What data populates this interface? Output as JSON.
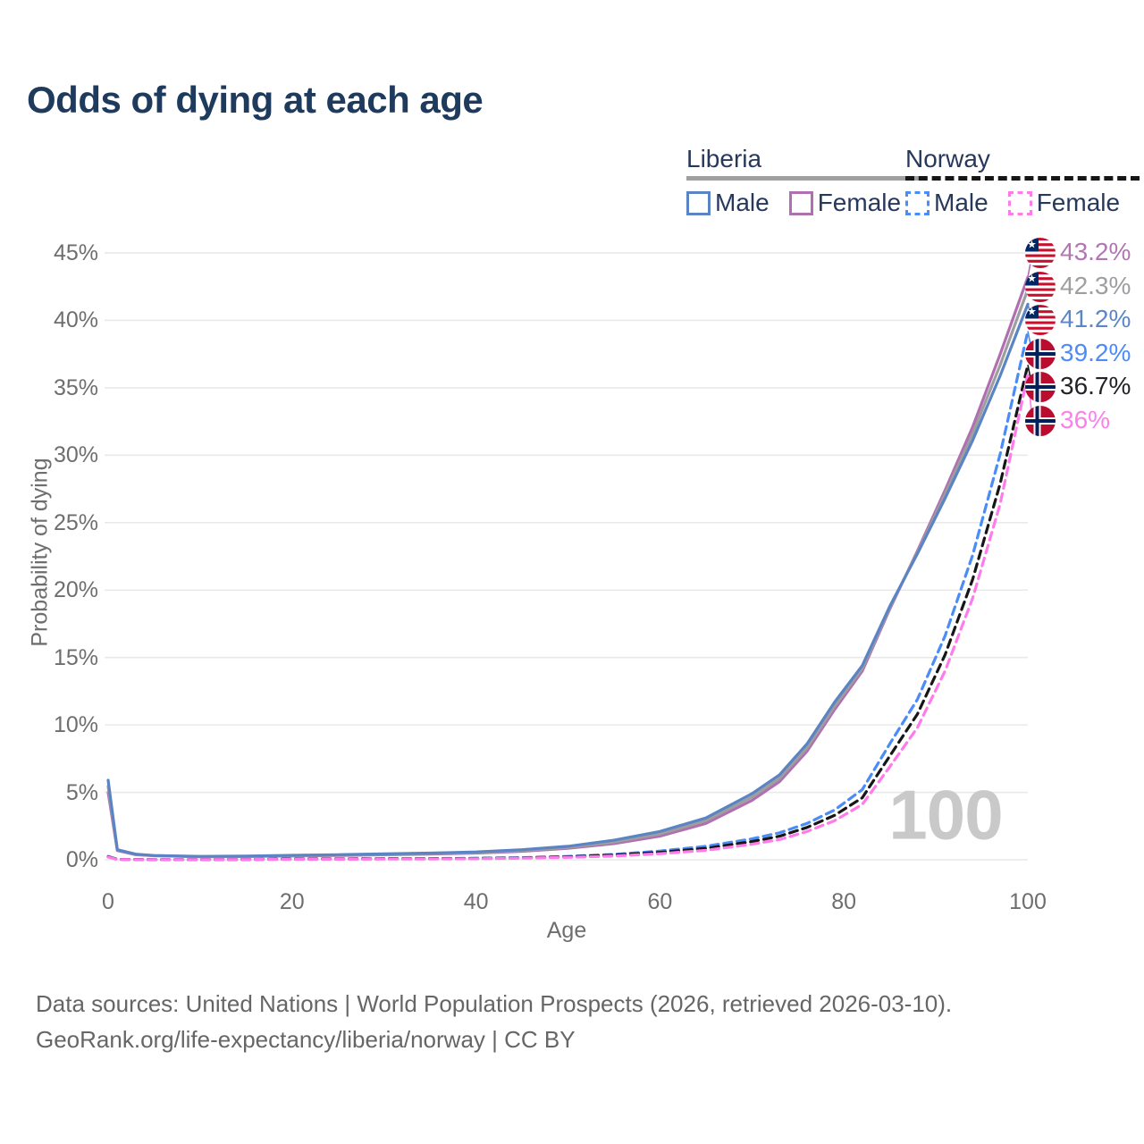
{
  "title": "Odds of dying at each age",
  "watermark": "100",
  "legend": {
    "groups": [
      {
        "label": "Liberia",
        "underline_style": "solid",
        "underline_color": "#a0a0a0",
        "items": [
          {
            "label": "Male",
            "color": "#5b84c4",
            "dashed": false
          },
          {
            "label": "Female",
            "color": "#b06fb0",
            "dashed": false
          }
        ]
      },
      {
        "label": "Norway",
        "underline_style": "dashed",
        "underline_color": "#161616",
        "items": [
          {
            "label": "Male",
            "color": "#4b8cf7",
            "dashed": true
          },
          {
            "label": "Female",
            "color": "#ff7bea",
            "dashed": true
          }
        ]
      }
    ]
  },
  "footer": {
    "line1": "Data sources: United Nations | World Population Prospects (2026, retrieved 2026-03-10).",
    "line2": "GeoRank.org/life-expectancy/liberia/norway | CC BY"
  },
  "chart_data": {
    "type": "line",
    "title": "Odds of dying at each age",
    "xlabel": "Age",
    "ylabel": "Probability of dying",
    "xlim": [
      0,
      100
    ],
    "ylim": [
      0,
      45
    ],
    "grid": true,
    "x_ticks": [
      {
        "value": 0,
        "label": "0"
      },
      {
        "value": 20,
        "label": "20"
      },
      {
        "value": 40,
        "label": "40"
      },
      {
        "value": 60,
        "label": "60"
      },
      {
        "value": 80,
        "label": "80"
      },
      {
        "value": 100,
        "label": "100"
      }
    ],
    "y_ticks": [
      {
        "value": 0,
        "label": "0%"
      },
      {
        "value": 5,
        "label": "5%"
      },
      {
        "value": 10,
        "label": "10%"
      },
      {
        "value": 15,
        "label": "15%"
      },
      {
        "value": 20,
        "label": "20%"
      },
      {
        "value": 25,
        "label": "25%"
      },
      {
        "value": 30,
        "label": "30%"
      },
      {
        "value": 35,
        "label": "35%"
      },
      {
        "value": 40,
        "label": "40%"
      },
      {
        "value": 45,
        "label": "45%"
      }
    ],
    "ages": [
      0,
      1,
      3,
      5,
      10,
      15,
      20,
      25,
      30,
      35,
      40,
      45,
      50,
      55,
      60,
      65,
      70,
      73,
      76,
      79,
      82,
      85,
      88,
      91,
      94,
      97,
      100
    ],
    "series": [
      {
        "name": "Liberia Female",
        "country": "Liberia",
        "sex": "Female",
        "flag": "liberia",
        "color": "#b06fb0",
        "label_color": "#b077b1",
        "dash": false,
        "end_label": "43.2%",
        "values": [
          5.0,
          0.68,
          0.38,
          0.3,
          0.22,
          0.24,
          0.28,
          0.32,
          0.37,
          0.42,
          0.5,
          0.63,
          0.85,
          1.2,
          1.75,
          2.7,
          4.4,
          5.8,
          8.05,
          11.15,
          14.0,
          18.6,
          22.9,
          27.4,
          32.1,
          37.5,
          43.2
        ]
      },
      {
        "name": "Liberia Both sexes",
        "country": "Liberia",
        "sex": "Both",
        "flag": "liberia",
        "color": "#9e9e9e",
        "label_color": "#9e9ea2",
        "dash": false,
        "end_label": "42.3%",
        "values": [
          5.45,
          0.72,
          0.4,
          0.31,
          0.23,
          0.26,
          0.3,
          0.35,
          0.4,
          0.46,
          0.54,
          0.69,
          0.92,
          1.32,
          1.92,
          2.9,
          4.65,
          6.05,
          8.3,
          11.4,
          14.2,
          18.7,
          22.8,
          27.1,
          31.6,
          36.7,
          42.3
        ]
      },
      {
        "name": "Liberia Male",
        "country": "Liberia",
        "sex": "Male",
        "flag": "liberia",
        "color": "#5b84c4",
        "label_color": "#5b87c6",
        "dash": false,
        "end_label": "41.2%",
        "values": [
          5.9,
          0.75,
          0.42,
          0.32,
          0.25,
          0.28,
          0.33,
          0.38,
          0.44,
          0.5,
          0.58,
          0.75,
          1.0,
          1.45,
          2.1,
          3.1,
          4.9,
          6.3,
          8.6,
          11.7,
          14.4,
          18.8,
          22.7,
          26.8,
          31.1,
          35.9,
          41.2
        ]
      },
      {
        "name": "Norway Male",
        "country": "Norway",
        "sex": "Male",
        "flag": "norway",
        "color": "#4b8cf7",
        "label_color": "#4b8cf7",
        "dash": true,
        "end_label": "39.2%",
        "values": [
          0.25,
          0.03,
          0.02,
          0.01,
          0.01,
          0.03,
          0.06,
          0.07,
          0.08,
          0.09,
          0.11,
          0.16,
          0.25,
          0.4,
          0.65,
          1.0,
          1.55,
          2.0,
          2.7,
          3.7,
          5.2,
          8.6,
          11.9,
          16.6,
          22.6,
          30.1,
          39.2
        ]
      },
      {
        "name": "Norway Both sexes",
        "country": "Norway",
        "sex": "Both",
        "flag": "norway",
        "color": "#161616",
        "label_color": "#232327",
        "dash": true,
        "end_label": "36.7%",
        "values": [
          0.22,
          0.03,
          0.02,
          0.01,
          0.01,
          0.02,
          0.05,
          0.06,
          0.07,
          0.08,
          0.1,
          0.14,
          0.22,
          0.35,
          0.55,
          0.85,
          1.35,
          1.75,
          2.4,
          3.3,
          4.6,
          7.7,
          10.8,
          15.2,
          20.8,
          27.9,
          36.7
        ]
      },
      {
        "name": "Norway Female",
        "country": "Norway",
        "sex": "Female",
        "flag": "norway",
        "color": "#ff7bea",
        "label_color": "#fb80ea",
        "dash": true,
        "end_label": "36%",
        "values": [
          0.2,
          0.02,
          0.01,
          0.01,
          0.01,
          0.02,
          0.03,
          0.04,
          0.05,
          0.06,
          0.08,
          0.12,
          0.18,
          0.28,
          0.45,
          0.7,
          1.15,
          1.5,
          2.1,
          2.9,
          4.1,
          6.9,
          9.8,
          14.0,
          19.4,
          26.4,
          36.0
        ]
      }
    ],
    "legend_position": "top-right",
    "end_labels_order_top_to_bottom": [
      "43.2%",
      "42.3%",
      "41.2%",
      "39.2%",
      "36.7%",
      "36%"
    ]
  }
}
